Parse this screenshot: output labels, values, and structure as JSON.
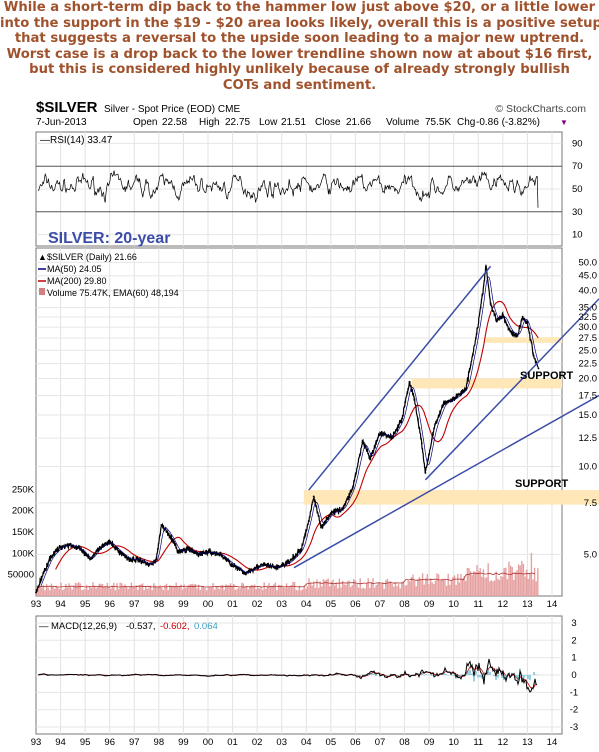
{
  "annotation": {
    "lines": [
      "While a short-term dip back to the hammer low just above $20, or a little lower",
      "into the support in the $19 - $20 area looks likely, overall this is a positive setup",
      "that suggests a reversal to the upside soon leading to a major new uptrend.",
      "Worst case is a drop back to the lower trendline shown now at about $16 first,",
      "but this is considered highly unlikely because of already strongly bullish",
      "COTs and sentiment."
    ]
  },
  "header": {
    "symbol": "$SILVER",
    "subtitle": "Silver - Spot Price (EOD) CME",
    "watermark": "© StockCharts.com",
    "date": "7-Jun-2013",
    "quote": {
      "open_label": "Open",
      "open": "22.58",
      "high_label": "High",
      "high": "22.75",
      "low_label": "Low",
      "low": "21.51",
      "close_label": "Close",
      "close": "21.66",
      "volume_label": "Volume",
      "volume": "75.5K",
      "chg_label": "Chg",
      "chg": "-0.86 (-3.82%)",
      "chg_arrow": "▼"
    }
  },
  "rsi_panel": {
    "legend": "RSI(14) 33.47",
    "title": "SILVER: 20-year",
    "title_color": "#3b4da8"
  },
  "price_panel": {
    "legend": [
      {
        "label": "$SILVER (Daily) 21.66",
        "color": "#000000",
        "style": "bar"
      },
      {
        "label": "MA(50) 24.05",
        "color": "#000080",
        "style": "line"
      },
      {
        "label": "MA(200) 29.80",
        "color": "#c00000",
        "style": "line"
      },
      {
        "label": "Volume 75.47K, EMA(60) 48,194",
        "color": "#d08080",
        "style": "volume"
      }
    ],
    "support_label_upper": "SUPPORT",
    "support_label_lower": "SUPPORT",
    "support_color": "#ffe7b8",
    "trendline_color": "#3b4da8",
    "volume_ticks": [
      "250K",
      "200K",
      "150K",
      "100K",
      "50000"
    ]
  },
  "macd_panel": {
    "legend_prefix": "MACD(12,26,9)",
    "macd": "-0.537,",
    "signal": "-0.602,",
    "hist": "0.064",
    "signal_color": "#c00000",
    "hist_color": "#3aa0c0"
  },
  "x_axis_years": [
    "93",
    "94",
    "95",
    "96",
    "97",
    "98",
    "99",
    "00",
    "01",
    "02",
    "03",
    "04",
    "05",
    "06",
    "07",
    "08",
    "09",
    "10",
    "11",
    "12",
    "13",
    "14"
  ],
  "chart_data": [
    {
      "type": "line",
      "name": "RSI(14)",
      "y_ticks": [
        10,
        30,
        50,
        70,
        90
      ],
      "ylim": [
        0,
        100
      ],
      "reference_lines": [
        30,
        70
      ],
      "last": 33.47
    },
    {
      "type": "line",
      "scale": "log",
      "y_ticks": [
        5.0,
        7.5,
        10.0,
        12.5,
        15.0,
        17.5,
        20.0,
        22.5,
        25.0,
        27.5,
        30.0,
        32.5,
        35.0,
        40.0,
        45.0,
        50.0
      ],
      "ylim": [
        3.6,
        56
      ],
      "x": [
        1993.0,
        1993.3,
        1993.6,
        1994.0,
        1994.4,
        1994.8,
        1995.2,
        1995.6,
        1996.0,
        1996.4,
        1996.8,
        1997.2,
        1997.6,
        1997.9,
        1998.1,
        1998.4,
        1998.8,
        1999.2,
        1999.6,
        2000.0,
        2000.5,
        2001.0,
        2001.5,
        2001.9,
        2002.3,
        2002.8,
        2003.3,
        2003.8,
        2004.1,
        2004.3,
        2004.6,
        2005.0,
        2005.5,
        2005.9,
        2006.3,
        2006.6,
        2007.0,
        2007.5,
        2007.9,
        2008.2,
        2008.4,
        2008.7,
        2008.85,
        2009.2,
        2009.6,
        2010.0,
        2010.5,
        2010.9,
        2011.1,
        2011.32,
        2011.5,
        2011.75,
        2012.0,
        2012.3,
        2012.6,
        2012.8,
        2013.0,
        2013.25,
        2013.45
      ],
      "series": [
        {
          "name": "$SILVER (Daily)",
          "values": [
            3.7,
            4.3,
            4.9,
            5.3,
            5.4,
            5.2,
            4.8,
            5.3,
            5.5,
            5.1,
            4.8,
            4.8,
            4.6,
            4.8,
            6.3,
            5.9,
            5.1,
            5.2,
            5.0,
            5.1,
            5.0,
            4.6,
            4.3,
            4.5,
            4.6,
            4.5,
            4.7,
            5.2,
            6.5,
            7.9,
            6.2,
            6.9,
            7.2,
            8.5,
            12.2,
            10.6,
            13.0,
            12.6,
            14.6,
            19.5,
            17.0,
            12.0,
            9.5,
            13.5,
            16.5,
            17.0,
            18.5,
            27.5,
            35.0,
            48.5,
            36.0,
            31.5,
            33.0,
            29.0,
            28.0,
            32.5,
            31.0,
            24.0,
            21.66
          ]
        }
      ],
      "support_zones": [
        [
          18.5,
          20.0
        ],
        [
          26.5,
          27.7
        ],
        [
          7.4,
          8.3
        ]
      ]
    },
    {
      "type": "line",
      "name": "MACD(12,26,9)",
      "y_ticks": [
        -3,
        -2,
        -1,
        0,
        1,
        2,
        3
      ],
      "ylim": [
        -3.4,
        3.4
      ],
      "last": {
        "macd": -0.537,
        "signal": -0.602,
        "histogram": 0.064
      }
    }
  ]
}
